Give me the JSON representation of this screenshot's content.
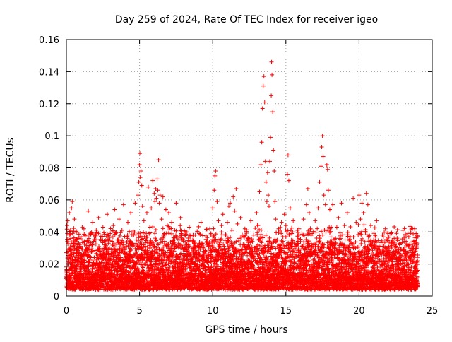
{
  "chart_data": {
    "type": "scatter",
    "title": "Day 259 of 2024, Rate Of TEC Index for receiver igeo",
    "xlabel": "GPS time / hours",
    "ylabel": "ROTI / TECUs",
    "xlim": [
      0,
      25
    ],
    "ylim": [
      0,
      0.16
    ],
    "x_ticks": [
      "0",
      "5",
      "10",
      "15",
      "20",
      "25"
    ],
    "y_ticks": [
      "0",
      "0.02",
      "0.04",
      "0.06",
      "0.08",
      "0.1",
      "0.12",
      "0.14",
      "0.16"
    ],
    "grid": true,
    "marker": "+",
    "color": "#ff0000",
    "series": [
      {
        "points": [
          [
            0.02,
            0.015
          ],
          [
            0.05,
            0.044
          ],
          [
            0.08,
            0.047
          ],
          [
            0.1,
            0.012
          ],
          [
            0.15,
            0.028
          ],
          [
            0.2,
            0.052
          ],
          [
            0.22,
            0.006
          ],
          [
            0.28,
            0.041
          ],
          [
            0.3,
            0.036
          ],
          [
            0.35,
            0.055
          ],
          [
            0.4,
            0.059
          ],
          [
            0.45,
            0.022
          ],
          [
            0.5,
            0.033
          ],
          [
            0.55,
            0.048
          ],
          [
            0.6,
            0.018
          ],
          [
            0.7,
            0.027
          ],
          [
            0.8,
            0.031
          ],
          [
            0.9,
            0.014
          ],
          [
            1.0,
            0.037
          ],
          [
            1.1,
            0.025
          ],
          [
            1.2,
            0.042
          ],
          [
            1.3,
            0.019
          ],
          [
            1.4,
            0.034
          ],
          [
            1.5,
            0.053
          ],
          [
            1.6,
            0.029
          ],
          [
            1.7,
            0.011
          ],
          [
            1.8,
            0.046
          ],
          [
            1.9,
            0.024
          ],
          [
            2.0,
            0.038
          ],
          [
            2.1,
            0.016
          ],
          [
            2.2,
            0.049
          ],
          [
            2.3,
            0.028
          ],
          [
            2.4,
            0.021
          ],
          [
            2.5,
            0.043
          ],
          [
            2.6,
            0.032
          ],
          [
            2.7,
            0.017
          ],
          [
            2.8,
            0.051
          ],
          [
            2.9,
            0.026
          ],
          [
            3.0,
            0.039
          ],
          [
            3.1,
            0.012
          ],
          [
            3.2,
            0.044
          ],
          [
            3.3,
            0.054
          ],
          [
            3.4,
            0.023
          ],
          [
            3.5,
            0.035
          ],
          [
            3.6,
            0.048
          ],
          [
            3.7,
            0.013
          ],
          [
            3.8,
            0.041
          ],
          [
            3.9,
            0.057
          ],
          [
            4.0,
            0.029
          ],
          [
            4.1,
            0.019
          ],
          [
            4.2,
            0.046
          ],
          [
            4.3,
            0.033
          ],
          [
            4.4,
            0.052
          ],
          [
            4.5,
            0.024
          ],
          [
            4.6,
            0.038
          ],
          [
            4.7,
            0.058
          ],
          [
            4.8,
            0.016
          ],
          [
            4.9,
            0.063
          ],
          [
            4.95,
            0.071
          ],
          [
            5.0,
            0.082
          ],
          [
            5.02,
            0.089
          ],
          [
            5.05,
            0.074
          ],
          [
            5.1,
            0.078
          ],
          [
            5.15,
            0.069
          ],
          [
            5.2,
            0.056
          ],
          [
            5.3,
            0.047
          ],
          [
            5.4,
            0.031
          ],
          [
            5.5,
            0.052
          ],
          [
            5.6,
            0.068
          ],
          [
            5.7,
            0.043
          ],
          [
            5.8,
            0.055
          ],
          [
            5.9,
            0.072
          ],
          [
            6.0,
            0.064
          ],
          [
            6.05,
            0.059
          ],
          [
            6.1,
            0.067
          ],
          [
            6.15,
            0.061
          ],
          [
            6.2,
            0.073
          ],
          [
            6.25,
            0.066
          ],
          [
            6.3,
            0.085
          ],
          [
            6.35,
            0.058
          ],
          [
            6.4,
            0.063
          ],
          [
            6.5,
            0.048
          ],
          [
            6.6,
            0.062
          ],
          [
            6.7,
            0.039
          ],
          [
            6.8,
            0.054
          ],
          [
            6.9,
            0.044
          ],
          [
            7.0,
            0.052
          ],
          [
            7.1,
            0.027
          ],
          [
            7.2,
            0.046
          ],
          [
            7.3,
            0.033
          ],
          [
            7.4,
            0.041
          ],
          [
            7.5,
            0.058
          ],
          [
            7.6,
            0.024
          ],
          [
            7.7,
            0.037
          ],
          [
            7.8,
            0.049
          ],
          [
            7.9,
            0.018
          ],
          [
            8.0,
            0.035
          ],
          [
            8.2,
            0.028
          ],
          [
            8.4,
            0.043
          ],
          [
            8.6,
            0.021
          ],
          [
            8.8,
            0.038
          ],
          [
            9.0,
            0.031
          ],
          [
            9.2,
            0.046
          ],
          [
            9.4,
            0.019
          ],
          [
            9.6,
            0.034
          ],
          [
            9.8,
            0.042
          ],
          [
            10.0,
            0.055
          ],
          [
            10.1,
            0.066
          ],
          [
            10.15,
            0.075
          ],
          [
            10.2,
            0.078
          ],
          [
            10.3,
            0.059
          ],
          [
            10.4,
            0.047
          ],
          [
            10.5,
            0.032
          ],
          [
            10.6,
            0.044
          ],
          [
            10.7,
            0.051
          ],
          [
            10.8,
            0.029
          ],
          [
            10.9,
            0.038
          ],
          [
            11.0,
            0.046
          ],
          [
            11.1,
            0.056
          ],
          [
            11.2,
            0.058
          ],
          [
            11.3,
            0.041
          ],
          [
            11.4,
            0.062
          ],
          [
            11.5,
            0.053
          ],
          [
            11.6,
            0.067
          ],
          [
            11.7,
            0.045
          ],
          [
            11.8,
            0.036
          ],
          [
            11.9,
            0.049
          ],
          [
            12.0,
            0.027
          ],
          [
            12.2,
            0.042
          ],
          [
            12.4,
            0.031
          ],
          [
            12.6,
            0.047
          ],
          [
            12.8,
            0.038
          ],
          [
            13.0,
            0.052
          ],
          [
            13.1,
            0.044
          ],
          [
            13.2,
            0.065
          ],
          [
            13.3,
            0.082
          ],
          [
            13.35,
            0.096
          ],
          [
            13.4,
            0.117
          ],
          [
            13.45,
            0.131
          ],
          [
            13.5,
            0.137
          ],
          [
            13.55,
            0.121
          ],
          [
            13.6,
            0.084
          ],
          [
            13.65,
            0.071
          ],
          [
            13.7,
            0.059
          ],
          [
            13.75,
            0.077
          ],
          [
            13.8,
            0.063
          ],
          [
            13.85,
            0.056
          ],
          [
            13.9,
            0.084
          ],
          [
            13.95,
            0.099
          ],
          [
            14.0,
            0.125
          ],
          [
            14.02,
            0.146
          ],
          [
            14.05,
            0.138
          ],
          [
            14.1,
            0.115
          ],
          [
            14.15,
            0.091
          ],
          [
            14.2,
            0.078
          ],
          [
            14.25,
            0.059
          ],
          [
            14.3,
            0.048
          ],
          [
            14.4,
            0.035
          ],
          [
            14.5,
            0.042
          ],
          [
            14.6,
            0.029
          ],
          [
            14.7,
            0.046
          ],
          [
            14.8,
            0.037
          ],
          [
            14.9,
            0.051
          ],
          [
            15.0,
            0.044
          ],
          [
            15.1,
            0.076
          ],
          [
            15.15,
            0.088
          ],
          [
            15.2,
            0.072
          ],
          [
            15.3,
            0.055
          ],
          [
            15.4,
            0.039
          ],
          [
            15.5,
            0.047
          ],
          [
            15.6,
            0.026
          ],
          [
            15.8,
            0.041
          ],
          [
            16.0,
            0.034
          ],
          [
            16.2,
            0.048
          ],
          [
            16.4,
            0.057
          ],
          [
            16.5,
            0.067
          ],
          [
            16.6,
            0.052
          ],
          [
            16.8,
            0.039
          ],
          [
            17.0,
            0.047
          ],
          [
            17.2,
            0.055
          ],
          [
            17.3,
            0.071
          ],
          [
            17.4,
            0.081
          ],
          [
            17.45,
            0.093
          ],
          [
            17.5,
            0.1
          ],
          [
            17.55,
            0.087
          ],
          [
            17.6,
            0.063
          ],
          [
            17.7,
            0.057
          ],
          [
            17.8,
            0.082
          ],
          [
            17.85,
            0.079
          ],
          [
            17.9,
            0.066
          ],
          [
            18.0,
            0.054
          ],
          [
            18.1,
            0.043
          ],
          [
            18.2,
            0.057
          ],
          [
            18.4,
            0.036
          ],
          [
            18.6,
            0.049
          ],
          [
            18.8,
            0.058
          ],
          [
            19.0,
            0.044
          ],
          [
            19.2,
            0.052
          ],
          [
            19.4,
            0.037
          ],
          [
            19.6,
            0.061
          ],
          [
            19.8,
            0.046
          ],
          [
            20.0,
            0.063
          ],
          [
            20.1,
            0.048
          ],
          [
            20.2,
            0.058
          ],
          [
            20.3,
            0.052
          ],
          [
            20.4,
            0.034
          ],
          [
            20.5,
            0.064
          ],
          [
            20.6,
            0.057
          ],
          [
            20.8,
            0.044
          ],
          [
            21.0,
            0.035
          ],
          [
            21.2,
            0.047
          ],
          [
            21.4,
            0.029
          ],
          [
            21.6,
            0.038
          ],
          [
            21.8,
            0.042
          ],
          [
            22.0,
            0.031
          ],
          [
            22.2,
            0.039
          ],
          [
            22.4,
            0.036
          ],
          [
            22.6,
            0.027
          ],
          [
            22.8,
            0.033
          ],
          [
            23.0,
            0.041
          ],
          [
            23.2,
            0.028
          ],
          [
            23.4,
            0.037
          ],
          [
            23.6,
            0.025
          ],
          [
            23.8,
            0.042
          ],
          [
            23.9,
            0.039
          ],
          [
            23.95,
            0.033
          ],
          [
            24.0,
            0.022
          ]
        ]
      }
    ],
    "dense_band": {
      "x_start": 0,
      "x_end": 24,
      "y_min": 0.003,
      "y_typical": 0.022,
      "y_upper": 0.045
    }
  }
}
